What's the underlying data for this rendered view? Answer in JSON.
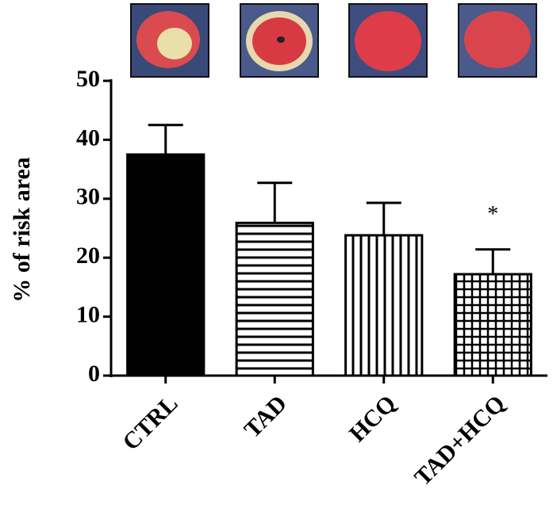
{
  "chart_data": {
    "type": "bar",
    "ylabel": "% of risk area",
    "categories": [
      "CTRL",
      "TAD",
      "HCQ",
      "TAD+HCQ"
    ],
    "values": [
      37.5,
      25.9,
      23.8,
      17.2
    ],
    "errors": [
      5.0,
      6.8,
      5.5,
      4.2
    ],
    "patterns": [
      "solid",
      "horizontal",
      "vertical",
      "grid"
    ],
    "color": "#000000",
    "ylim": [
      0,
      50
    ],
    "yticks": [
      0,
      10,
      20,
      30,
      40,
      50
    ],
    "annotations": [
      {
        "text": "*",
        "category": "TAD+HCQ"
      }
    ]
  }
}
